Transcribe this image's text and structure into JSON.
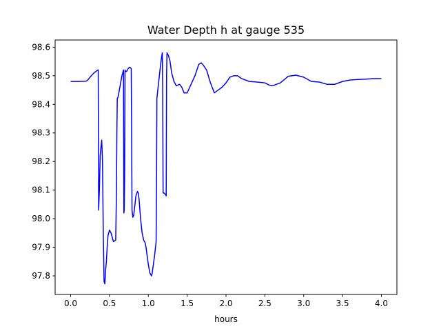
{
  "chart_data": {
    "type": "line",
    "title": "Water Depth h at gauge 535",
    "xlabel": "hours",
    "ylabel": "",
    "xlim": [
      -0.2,
      4.2
    ],
    "ylim": [
      97.735,
      98.625
    ],
    "grid": false,
    "legend": "none",
    "x_ticks": [
      0.0,
      0.5,
      1.0,
      1.5,
      2.0,
      2.5,
      3.0,
      3.5,
      4.0
    ],
    "x_tick_labels": [
      "0.0",
      "0.5",
      "1.0",
      "1.5",
      "2.0",
      "2.5",
      "3.0",
      "3.5",
      "4.0"
    ],
    "y_ticks": [
      97.8,
      97.9,
      98.0,
      98.1,
      98.2,
      98.3,
      98.4,
      98.5,
      98.6
    ],
    "y_tick_labels": [
      "97.8",
      "97.9",
      "98.0",
      "98.1",
      "98.2",
      "98.3",
      "98.4",
      "98.5",
      "98.6"
    ],
    "series": [
      {
        "color": "#0000ff",
        "x": [
          0.0,
          0.1,
          0.2,
          0.22,
          0.25,
          0.3,
          0.35,
          0.355,
          0.36,
          0.37,
          0.38,
          0.39,
          0.4,
          0.41,
          0.42,
          0.43,
          0.44,
          0.45,
          0.46,
          0.47,
          0.48,
          0.5,
          0.52,
          0.55,
          0.58,
          0.59,
          0.595,
          0.6,
          0.61,
          0.62,
          0.64,
          0.66,
          0.68,
          0.685,
          0.69,
          0.695,
          0.7,
          0.71,
          0.72,
          0.74,
          0.76,
          0.78,
          0.785,
          0.79,
          0.8,
          0.81,
          0.82,
          0.84,
          0.86,
          0.87,
          0.88,
          0.9,
          0.92,
          0.94,
          0.96,
          0.97,
          0.98,
          1.0,
          1.02,
          1.04,
          1.05,
          1.06,
          1.08,
          1.1,
          1.105,
          1.11,
          1.13,
          1.15,
          1.17,
          1.18,
          1.185,
          1.19,
          1.2,
          1.22,
          1.23,
          1.235,
          1.24,
          1.26,
          1.28,
          1.3,
          1.33,
          1.36,
          1.4,
          1.43,
          1.46,
          1.5,
          1.55,
          1.6,
          1.65,
          1.68,
          1.7,
          1.75,
          1.8,
          1.85,
          1.9,
          1.95,
          2.0,
          2.05,
          2.1,
          2.15,
          2.2,
          2.3,
          2.4,
          2.5,
          2.55,
          2.6,
          2.7,
          2.8,
          2.9,
          3.0,
          3.1,
          3.2,
          3.3,
          3.4,
          3.5,
          3.6,
          3.7,
          3.8,
          3.9,
          4.0
        ],
        "y": [
          98.48,
          98.48,
          98.481,
          98.485,
          98.495,
          98.51,
          98.52,
          98.52,
          98.03,
          98.1,
          98.22,
          98.25,
          98.275,
          98.2,
          97.95,
          97.78,
          97.772,
          97.82,
          97.85,
          97.9,
          97.94,
          97.96,
          97.95,
          97.92,
          97.925,
          98.1,
          98.3,
          98.42,
          98.425,
          98.44,
          98.47,
          98.5,
          98.52,
          98.02,
          98.03,
          98.15,
          98.52,
          98.515,
          98.515,
          98.525,
          98.53,
          98.525,
          98.3,
          98.03,
          98.005,
          98.01,
          98.03,
          98.08,
          98.095,
          98.09,
          98.07,
          98.0,
          97.95,
          97.925,
          97.915,
          97.9,
          97.88,
          97.84,
          97.81,
          97.8,
          97.81,
          97.83,
          97.87,
          97.92,
          98.1,
          98.42,
          98.47,
          98.52,
          98.565,
          98.58,
          98.45,
          98.09,
          98.09,
          98.085,
          98.08,
          98.5,
          98.58,
          98.57,
          98.55,
          98.51,
          98.48,
          98.465,
          98.47,
          98.46,
          98.44,
          98.44,
          98.47,
          98.5,
          98.54,
          98.545,
          98.54,
          98.52,
          98.475,
          98.44,
          98.45,
          98.46,
          98.475,
          98.495,
          98.5,
          98.5,
          98.49,
          98.48,
          98.478,
          98.475,
          98.468,
          98.465,
          98.475,
          98.498,
          98.502,
          98.495,
          98.48,
          98.478,
          98.47,
          98.47,
          98.48,
          98.485,
          98.487,
          98.488,
          98.49,
          98.49
        ]
      }
    ]
  }
}
